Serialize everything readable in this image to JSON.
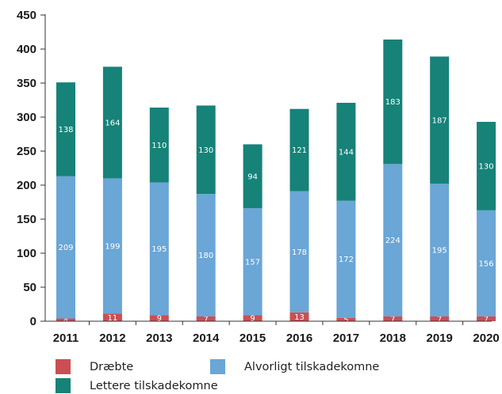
{
  "chart_data": {
    "type": "bar",
    "stacked": true,
    "categories": [
      "2011",
      "2012",
      "2013",
      "2014",
      "2015",
      "2016",
      "2017",
      "2018",
      "2019",
      "2020"
    ],
    "series": [
      {
        "name": "Dræbte",
        "color": "#cc4e52",
        "values": [
          4,
          11,
          9,
          7,
          9,
          13,
          5,
          7,
          7,
          7
        ]
      },
      {
        "name": "Alvorligt tilskadekomne",
        "color": "#6aa6d6",
        "values": [
          209,
          199,
          195,
          180,
          157,
          178,
          172,
          224,
          195,
          156
        ]
      },
      {
        "name": "Lettere tilskadekomne",
        "color": "#168278",
        "values": [
          138,
          164,
          110,
          130,
          94,
          121,
          144,
          183,
          187,
          130
        ]
      }
    ],
    "ylim": [
      0,
      450
    ],
    "yticks": [
      0,
      50,
      100,
      150,
      200,
      250,
      300,
      350,
      400,
      450
    ],
    "grid": false,
    "legend_position": "bottom"
  }
}
